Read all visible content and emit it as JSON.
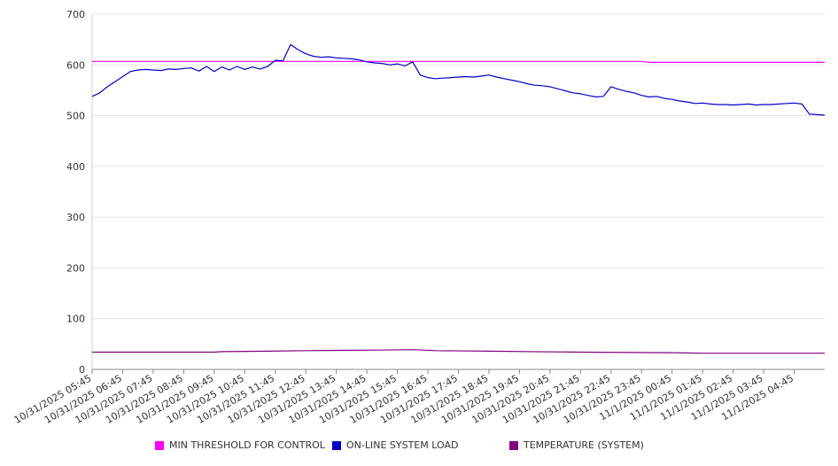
{
  "chart_data": {
    "type": "line",
    "title": "",
    "xlabel": "",
    "ylabel": "",
    "ylim": [
      0,
      700
    ],
    "yticks": [
      0,
      100,
      200,
      300,
      400,
      500,
      600,
      700
    ],
    "grid": true,
    "legend_position": "bottom",
    "x_tick_labels": [
      "10/31/2025 05:45",
      "10/31/2025 06:45",
      "10/31/2025 07:45",
      "10/31/2025 08:45",
      "10/31/2025 09:45",
      "10/31/2025 10:45",
      "10/31/2025 11:45",
      "10/31/2025 12:45",
      "10/31/2025 13:45",
      "10/31/2025 14:45",
      "10/31/2025 15:45",
      "10/31/2025 16:45",
      "10/31/2025 17:45",
      "10/31/2025 18:45",
      "10/31/2025 19:45",
      "10/31/2025 20:45",
      "10/31/2025 21:45",
      "10/31/2025 22:45",
      "10/31/2025 23:45",
      "11/1/2025 00:45",
      "11/1/2025 01:45",
      "11/1/2025 02:45",
      "11/1/2025 03:45",
      "11/1/2025 04:45"
    ],
    "series": [
      {
        "name": "MIN THRESHOLD FOR CONTROL",
        "color": "#ff00ff",
        "points": [
          [
            "10/31/2025 05:45",
            607
          ],
          [
            "10/31/2025 23:45",
            607
          ],
          [
            "11/1/2025 00:00",
            605
          ],
          [
            "11/1/2025 05:45",
            605
          ]
        ]
      },
      {
        "name": "ON-LINE SYSTEM LOAD",
        "color": "#0000cc",
        "points": [
          [
            "10/31/2025 05:45",
            538
          ],
          [
            "10/31/2025 06:00",
            545
          ],
          [
            "10/31/2025 06:15",
            557
          ],
          [
            "10/31/2025 06:30",
            567
          ],
          [
            "10/31/2025 06:45",
            577
          ],
          [
            "10/31/2025 07:00",
            587
          ],
          [
            "10/31/2025 07:15",
            590
          ],
          [
            "10/31/2025 07:30",
            591
          ],
          [
            "10/31/2025 07:45",
            590
          ],
          [
            "10/31/2025 08:00",
            589
          ],
          [
            "10/31/2025 08:15",
            592
          ],
          [
            "10/31/2025 08:30",
            591
          ],
          [
            "10/31/2025 08:45",
            593
          ],
          [
            "10/31/2025 09:00",
            594
          ],
          [
            "10/31/2025 09:15",
            588
          ],
          [
            "10/31/2025 09:30",
            597
          ],
          [
            "10/31/2025 09:45",
            587
          ],
          [
            "10/31/2025 10:00",
            596
          ],
          [
            "10/31/2025 10:15",
            590
          ],
          [
            "10/31/2025 10:30",
            597
          ],
          [
            "10/31/2025 10:45",
            591
          ],
          [
            "10/31/2025 11:00",
            596
          ],
          [
            "10/31/2025 11:15",
            592
          ],
          [
            "10/31/2025 11:30",
            597
          ],
          [
            "10/31/2025 11:45",
            609
          ],
          [
            "10/31/2025 12:00",
            608
          ],
          [
            "10/31/2025 12:15",
            640
          ],
          [
            "10/31/2025 12:30",
            630
          ],
          [
            "10/31/2025 12:45",
            622
          ],
          [
            "10/31/2025 13:00",
            617
          ],
          [
            "10/31/2025 13:15",
            615
          ],
          [
            "10/31/2025 13:30",
            616
          ],
          [
            "10/31/2025 13:45",
            614
          ],
          [
            "10/31/2025 14:00",
            613
          ],
          [
            "10/31/2025 14:15",
            612
          ],
          [
            "10/31/2025 14:30",
            610
          ],
          [
            "10/31/2025 14:45",
            606
          ],
          [
            "10/31/2025 15:00",
            604
          ],
          [
            "10/31/2025 15:15",
            603
          ],
          [
            "10/31/2025 15:30",
            600
          ],
          [
            "10/31/2025 15:45",
            602
          ],
          [
            "10/31/2025 16:00",
            598
          ],
          [
            "10/31/2025 16:15",
            606
          ],
          [
            "10/31/2025 16:30",
            580
          ],
          [
            "10/31/2025 16:45",
            575
          ],
          [
            "10/31/2025 17:00",
            573
          ],
          [
            "10/31/2025 17:15",
            574
          ],
          [
            "10/31/2025 17:30",
            575
          ],
          [
            "10/31/2025 17:45",
            576
          ],
          [
            "10/31/2025 18:00",
            577
          ],
          [
            "10/31/2025 18:15",
            576
          ],
          [
            "10/31/2025 18:30",
            578
          ],
          [
            "10/31/2025 18:45",
            580
          ],
          [
            "10/31/2025 19:00",
            576
          ],
          [
            "10/31/2025 19:15",
            573
          ],
          [
            "10/31/2025 19:30",
            570
          ],
          [
            "10/31/2025 19:45",
            567
          ],
          [
            "10/31/2025 20:00",
            563
          ],
          [
            "10/31/2025 20:15",
            560
          ],
          [
            "10/31/2025 20:30",
            559
          ],
          [
            "10/31/2025 20:45",
            557
          ],
          [
            "10/31/2025 21:00",
            553
          ],
          [
            "10/31/2025 21:15",
            549
          ],
          [
            "10/31/2025 21:30",
            545
          ],
          [
            "10/31/2025 21:45",
            543
          ],
          [
            "10/31/2025 22:00",
            540
          ],
          [
            "10/31/2025 22:15",
            537
          ],
          [
            "10/31/2025 22:30",
            538
          ],
          [
            "10/31/2025 22:45",
            557
          ],
          [
            "10/31/2025 23:00",
            552
          ],
          [
            "10/31/2025 23:15",
            548
          ],
          [
            "10/31/2025 23:30",
            545
          ],
          [
            "10/31/2025 23:45",
            540
          ],
          [
            "11/1/2025 00:00",
            537
          ],
          [
            "11/1/2025 00:15",
            538
          ],
          [
            "11/1/2025 00:30",
            534
          ],
          [
            "11/1/2025 00:45",
            532
          ],
          [
            "11/1/2025 01:00",
            529
          ],
          [
            "11/1/2025 01:15",
            527
          ],
          [
            "11/1/2025 01:30",
            524
          ],
          [
            "11/1/2025 01:45",
            525
          ],
          [
            "11/1/2025 02:00",
            523
          ],
          [
            "11/1/2025 02:15",
            522
          ],
          [
            "11/1/2025 02:30",
            522
          ],
          [
            "11/1/2025 02:45",
            521
          ],
          [
            "11/1/2025 03:00",
            522
          ],
          [
            "11/1/2025 03:15",
            523
          ],
          [
            "11/1/2025 03:30",
            521
          ],
          [
            "11/1/2025 03:45",
            522
          ],
          [
            "11/1/2025 04:00",
            522
          ],
          [
            "11/1/2025 04:15",
            523
          ],
          [
            "11/1/2025 04:30",
            524
          ],
          [
            "11/1/2025 04:45",
            525
          ],
          [
            "11/1/2025 05:00",
            523
          ],
          [
            "11/1/2025 05:15",
            503
          ],
          [
            "11/1/2025 05:30",
            502
          ],
          [
            "11/1/2025 05:45",
            501
          ]
        ]
      },
      {
        "name": "TEMPERATURE (SYSTEM)",
        "color": "#800080",
        "points": [
          [
            "10/31/2025 05:45",
            34
          ],
          [
            "10/31/2025 09:45",
            34
          ],
          [
            "10/31/2025 10:00",
            35
          ],
          [
            "10/31/2025 11:30",
            36
          ],
          [
            "10/31/2025 12:45",
            37
          ],
          [
            "10/31/2025 15:00",
            38
          ],
          [
            "10/31/2025 16:15",
            39
          ],
          [
            "10/31/2025 17:00",
            37
          ],
          [
            "10/31/2025 18:45",
            36
          ],
          [
            "10/31/2025 21:45",
            34
          ],
          [
            "11/1/2025 00:45",
            33
          ],
          [
            "11/1/2025 01:45",
            32
          ],
          [
            "11/1/2025 05:45",
            32
          ]
        ]
      }
    ]
  }
}
